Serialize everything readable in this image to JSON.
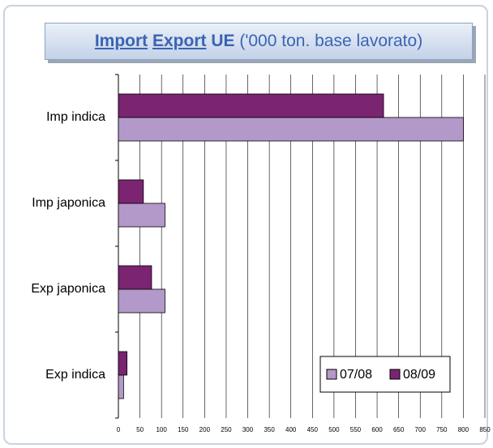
{
  "chart_data": {
    "type": "bar",
    "orientation": "horizontal",
    "title_parts": [
      "Import",
      "Export",
      "UE",
      "('000 ton. base lavorato)"
    ],
    "categories": [
      "Imp indica",
      "Imp japonica",
      "Exp japonica",
      "Exp indica"
    ],
    "series": [
      {
        "name": "07/08",
        "color": "#b399c9",
        "values": [
          800,
          108,
          108,
          12
        ]
      },
      {
        "name": "08/09",
        "color": "#7b2472",
        "values": [
          615,
          58,
          77,
          20
        ]
      }
    ],
    "xlim": [
      0,
      850
    ],
    "xticks": [
      0,
      50,
      100,
      150,
      200,
      250,
      300,
      350,
      400,
      450,
      500,
      550,
      600,
      650,
      700,
      750,
      800,
      850
    ],
    "grid": true,
    "legend": "lower right"
  }
}
